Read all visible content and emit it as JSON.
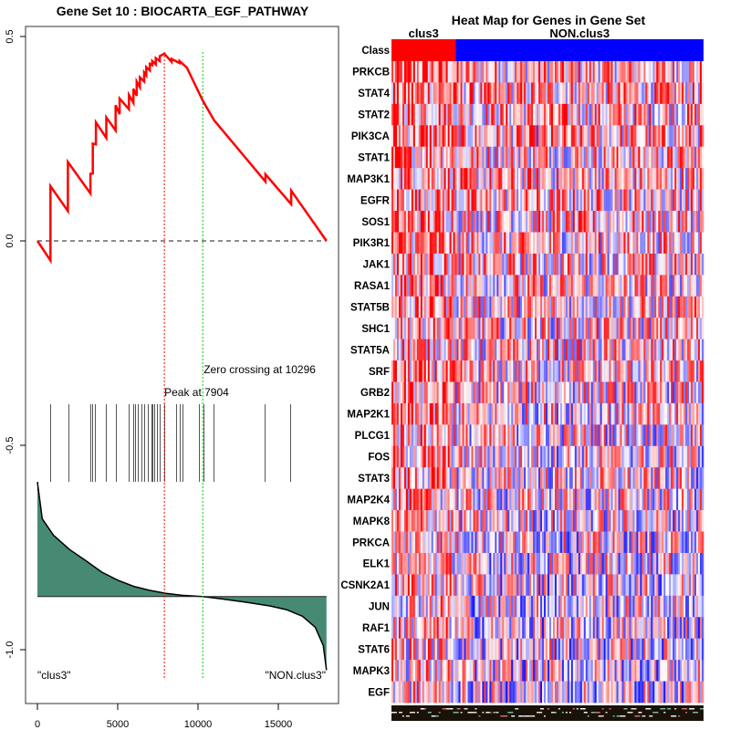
{
  "chart_data": [
    {
      "type": "line",
      "title": "Gene Set  10 : BIOCARTA_EGF_PATHWAY",
      "xlabel": "",
      "ylabel": "",
      "xlim": [
        -900,
        18700
      ],
      "ylim": [
        -1.12,
        0.56
      ],
      "x_ticks": [
        0,
        5000,
        10000,
        15000
      ],
      "x_tick_labels": [
        "0",
        "5000",
        "10000",
        "15000"
      ],
      "y_ticks": [
        0.5,
        0.0,
        -0.5,
        -1.0
      ],
      "y_tick_labels": [
        "0.5",
        "0.0",
        "-0.5",
        "-1.0"
      ],
      "n_genes": 18000,
      "running_es": {
        "name": "Running enrichment score",
        "color": "#ff0000",
        "points": [
          [
            0,
            0.0
          ],
          [
            810,
            -0.048
          ],
          [
            810,
            0.134
          ],
          [
            1900,
            0.073
          ],
          [
            1900,
            0.193
          ],
          [
            3300,
            0.116
          ],
          [
            3300,
            0.164
          ],
          [
            3450,
            0.165
          ],
          [
            3450,
            0.238
          ],
          [
            3640,
            0.236
          ],
          [
            3640,
            0.29
          ],
          [
            4290,
            0.252
          ],
          [
            4290,
            0.302
          ],
          [
            4870,
            0.27
          ],
          [
            4870,
            0.332
          ],
          [
            5120,
            0.31
          ],
          [
            5120,
            0.348
          ],
          [
            5700,
            0.322
          ],
          [
            5700,
            0.357
          ],
          [
            5980,
            0.338
          ],
          [
            5980,
            0.372
          ],
          [
            6180,
            0.355
          ],
          [
            6180,
            0.39
          ],
          [
            6380,
            0.376
          ],
          [
            6380,
            0.4
          ],
          [
            6650,
            0.39
          ],
          [
            6650,
            0.412
          ],
          [
            6780,
            0.405
          ],
          [
            6780,
            0.425
          ],
          [
            7000,
            0.417
          ],
          [
            7000,
            0.433
          ],
          [
            7150,
            0.43
          ],
          [
            7150,
            0.44
          ],
          [
            7370,
            0.432
          ],
          [
            7370,
            0.447
          ],
          [
            7620,
            0.44
          ],
          [
            7620,
            0.452
          ],
          [
            7904,
            0.458
          ],
          [
            8350,
            0.438
          ],
          [
            8350,
            0.445
          ],
          [
            8850,
            0.435
          ],
          [
            8850,
            0.44
          ],
          [
            9300,
            0.424
          ],
          [
            10296,
            0.343
          ],
          [
            11000,
            0.295
          ],
          [
            14200,
            0.145
          ],
          [
            14200,
            0.163
          ],
          [
            15800,
            0.09
          ],
          [
            15800,
            0.123
          ],
          [
            18000,
            0.0
          ]
        ]
      },
      "baseline": {
        "y": 0.0,
        "style": "dashed",
        "color": "#666666"
      },
      "peak": {
        "label": "Peak at 7904",
        "x": 7904,
        "color": "#ff0000"
      },
      "zero_crossing": {
        "label": "Zero crossing at 10296",
        "x": 10296,
        "color": "#00cc00"
      },
      "hit_positions": [
        800,
        1950,
        3300,
        3420,
        3600,
        4260,
        4880,
        5680,
        5960,
        6070,
        6250,
        6470,
        6650,
        6880,
        7100,
        7160,
        7270,
        7440,
        7620,
        7900,
        8620,
        8860,
        9030,
        10050,
        10340,
        10950,
        14170,
        15760
      ],
      "ranked_metric": {
        "fill_color": "#468a74",
        "baseline_y": -0.87,
        "points": [
          [
            0,
            -0.59
          ],
          [
            300,
            -0.68
          ],
          [
            1000,
            -0.72
          ],
          [
            2000,
            -0.755
          ],
          [
            3000,
            -0.782
          ],
          [
            4000,
            -0.81
          ],
          [
            5000,
            -0.83
          ],
          [
            6000,
            -0.845
          ],
          [
            7000,
            -0.855
          ],
          [
            8000,
            -0.862
          ],
          [
            9000,
            -0.867
          ],
          [
            10296,
            -0.87
          ],
          [
            11500,
            -0.876
          ],
          [
            13000,
            -0.884
          ],
          [
            14500,
            -0.893
          ],
          [
            15500,
            -0.902
          ],
          [
            16500,
            -0.918
          ],
          [
            17300,
            -0.945
          ],
          [
            17800,
            -0.99
          ],
          [
            18000,
            -1.05
          ]
        ]
      },
      "annotations": [
        {
          "text": "\"clus3\"",
          "x": 0,
          "y": -1.06
        },
        {
          "text": "\"NON.clus3\"",
          "x": 18000,
          "y": -1.06
        }
      ]
    },
    {
      "type": "heatmap",
      "title": "Heat Map for Genes in Gene Set",
      "class_row_label": "Class",
      "classes": [
        {
          "name": "clus3",
          "color": "#ff0000",
          "fraction": 0.206
        },
        {
          "name": "NON.clus3",
          "color": "#0000ff",
          "fraction": 0.794
        }
      ],
      "genes": [
        "PRKCB",
        "STAT4",
        "STAT2",
        "PIK3CA",
        "STAT1",
        "MAP3K1",
        "EGFR",
        "SOS1",
        "PIK3R1",
        "JAK1",
        "RASA1",
        "STAT5B",
        "SHC1",
        "STAT5A",
        "SRF",
        "GRB2",
        "MAP2K1",
        "PLCG1",
        "FOS",
        "STAT3",
        "MAP2K4",
        "MAPK8",
        "PRKCA",
        "ELK1",
        "CSNK2A1",
        "JUN",
        "RAF1",
        "STAT6",
        "MAPK3",
        "EGF"
      ],
      "color_scale": {
        "low": "#0000ff",
        "mid": "#ffffff",
        "high": "#ff0000"
      },
      "n_samples": 172
    }
  ]
}
